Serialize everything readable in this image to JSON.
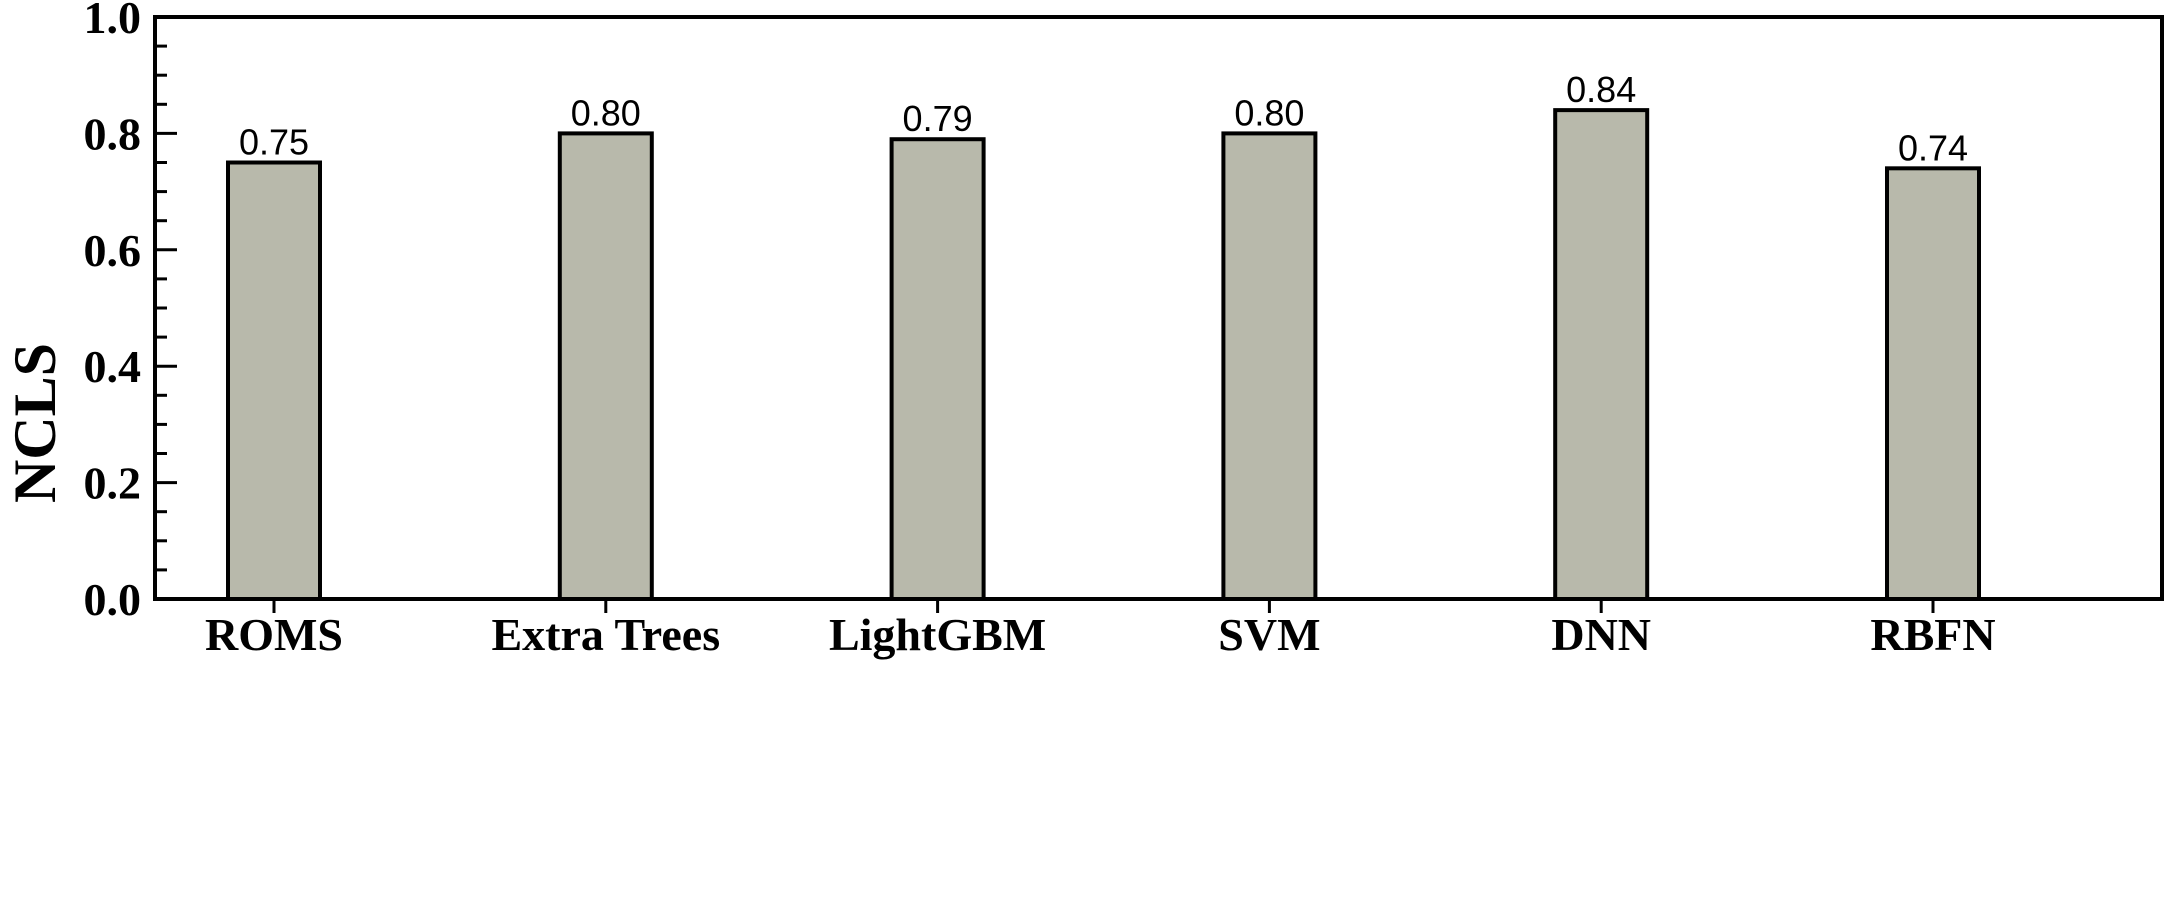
{
  "chart_data": {
    "type": "bar",
    "categories": [
      "ROMS",
      "Extra Trees",
      "LightGBM",
      "SVM",
      "DNN",
      "RBFN"
    ],
    "values": [
      0.75,
      0.8,
      0.79,
      0.8,
      0.84,
      0.74
    ],
    "value_labels": [
      "0.75",
      "0.80",
      "0.79",
      "0.80",
      "0.84",
      "0.74"
    ],
    "ylabel": "NCLS",
    "xlabel": "",
    "ylim": [
      0.0,
      1.0
    ],
    "yticks": [
      0.0,
      0.2,
      0.4,
      0.6,
      0.8,
      1.0
    ],
    "ytick_labels": [
      "0.0",
      "0.2",
      "0.4",
      "0.6",
      "0.8",
      "1.0"
    ],
    "grid": false,
    "legend": "none",
    "colors": {
      "bar_fill": "#b8b9ab",
      "bar_stroke": "#000000",
      "axis": "#000000"
    }
  }
}
